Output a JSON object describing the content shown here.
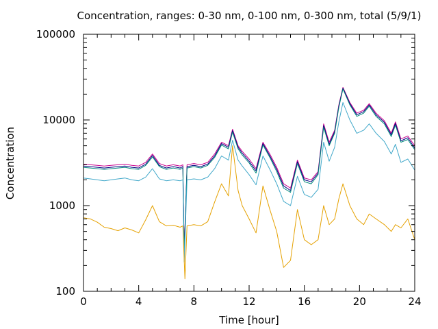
{
  "chart_data": {
    "type": "line",
    "title": "Concentration, ranges: 0-30 nm, 0-100 nm, 0-300 nm, total (5/9/1)",
    "xlabel": "Time [hour]",
    "ylabel": "Concentration",
    "xlim": [
      0,
      24
    ],
    "ylim": [
      100,
      100000
    ],
    "yscale": "log",
    "grid": false,
    "legend": "none",
    "x_ticks": [
      "0",
      "4",
      "8",
      "12",
      "16",
      "20",
      "24"
    ],
    "y_ticks": [
      "100",
      "1000",
      "10000",
      "100000"
    ],
    "series": [
      {
        "color": "#c8008c",
        "points": [
          [
            0,
            3050
          ],
          [
            0.5,
            3000
          ],
          [
            1,
            2950
          ],
          [
            1.5,
            2900
          ],
          [
            2,
            2950
          ],
          [
            2.5,
            3000
          ],
          [
            3,
            3050
          ],
          [
            3.5,
            2950
          ],
          [
            4,
            2900
          ],
          [
            4.5,
            3200
          ],
          [
            5,
            4000
          ],
          [
            5.5,
            3100
          ],
          [
            6,
            2900
          ],
          [
            6.5,
            3000
          ],
          [
            7,
            2900
          ],
          [
            7.2,
            3000
          ],
          [
            7.3,
            300
          ],
          [
            7.5,
            3000
          ],
          [
            8,
            3100
          ],
          [
            8.5,
            3000
          ],
          [
            9,
            3200
          ],
          [
            9.5,
            4000
          ],
          [
            10,
            5500
          ],
          [
            10.5,
            5000
          ],
          [
            10.8,
            7800
          ],
          [
            11.2,
            5000
          ],
          [
            11.5,
            4300
          ],
          [
            12,
            3500
          ],
          [
            12.5,
            2700
          ],
          [
            13,
            5500
          ],
          [
            13.5,
            4000
          ],
          [
            14,
            2800
          ],
          [
            14.5,
            1800
          ],
          [
            15,
            1600
          ],
          [
            15.5,
            3400
          ],
          [
            16,
            2100
          ],
          [
            16.5,
            2000
          ],
          [
            17,
            2500
          ],
          [
            17.4,
            9000
          ],
          [
            17.8,
            5500
          ],
          [
            18.2,
            7600
          ],
          [
            18.5,
            15000
          ],
          [
            18.8,
            24000
          ],
          [
            19.3,
            16000
          ],
          [
            19.8,
            12000
          ],
          [
            20.3,
            13000
          ],
          [
            20.7,
            15500
          ],
          [
            21.2,
            12000
          ],
          [
            21.8,
            9800
          ],
          [
            22.3,
            7000
          ],
          [
            22.6,
            9500
          ],
          [
            23,
            6000
          ],
          [
            23.5,
            6500
          ],
          [
            24,
            5000
          ]
        ]
      },
      {
        "color": "#000080",
        "points": [
          [
            0,
            2900
          ],
          [
            0.5,
            2850
          ],
          [
            1,
            2800
          ],
          [
            1.5,
            2750
          ],
          [
            2,
            2800
          ],
          [
            2.5,
            2850
          ],
          [
            3,
            2900
          ],
          [
            3.5,
            2800
          ],
          [
            4,
            2750
          ],
          [
            4.5,
            3050
          ],
          [
            5,
            3850
          ],
          [
            5.5,
            2950
          ],
          [
            6,
            2750
          ],
          [
            6.5,
            2850
          ],
          [
            7,
            2750
          ],
          [
            7.2,
            2850
          ],
          [
            7.3,
            280
          ],
          [
            7.5,
            2850
          ],
          [
            8,
            2950
          ],
          [
            8.5,
            2850
          ],
          [
            9,
            3050
          ],
          [
            9.5,
            3800
          ],
          [
            10,
            5300
          ],
          [
            10.5,
            4800
          ],
          [
            10.8,
            7500
          ],
          [
            11.2,
            4800
          ],
          [
            11.5,
            4100
          ],
          [
            12,
            3300
          ],
          [
            12.5,
            2550
          ],
          [
            13,
            5300
          ],
          [
            13.5,
            3800
          ],
          [
            14,
            2650
          ],
          [
            14.5,
            1700
          ],
          [
            15,
            1500
          ],
          [
            15.5,
            3250
          ],
          [
            16,
            2000
          ],
          [
            16.5,
            1900
          ],
          [
            17,
            2400
          ],
          [
            17.4,
            8600
          ],
          [
            17.8,
            5200
          ],
          [
            18.2,
            7300
          ],
          [
            18.5,
            14500
          ],
          [
            18.8,
            23500
          ],
          [
            19.3,
            15500
          ],
          [
            19.8,
            11500
          ],
          [
            20.3,
            12500
          ],
          [
            20.7,
            15000
          ],
          [
            21.2,
            11500
          ],
          [
            21.8,
            9400
          ],
          [
            22.3,
            6700
          ],
          [
            22.6,
            9100
          ],
          [
            23,
            5700
          ],
          [
            23.5,
            6200
          ],
          [
            24,
            4700
          ]
        ]
      },
      {
        "color": "#00897b",
        "points": [
          [
            0,
            2800
          ],
          [
            0.5,
            2750
          ],
          [
            1,
            2700
          ],
          [
            1.5,
            2650
          ],
          [
            2,
            2700
          ],
          [
            2.5,
            2750
          ],
          [
            3,
            2800
          ],
          [
            3.5,
            2700
          ],
          [
            4,
            2650
          ],
          [
            4.5,
            2950
          ],
          [
            5,
            3700
          ],
          [
            5.5,
            2850
          ],
          [
            6,
            2650
          ],
          [
            6.5,
            2750
          ],
          [
            7,
            2650
          ],
          [
            7.2,
            2750
          ],
          [
            7.3,
            270
          ],
          [
            7.5,
            2750
          ],
          [
            8,
            2850
          ],
          [
            8.5,
            2750
          ],
          [
            9,
            2950
          ],
          [
            9.5,
            3650
          ],
          [
            10,
            5100
          ],
          [
            10.5,
            4600
          ],
          [
            10.8,
            7200
          ],
          [
            11.2,
            4600
          ],
          [
            11.5,
            3900
          ],
          [
            12,
            3150
          ],
          [
            12.5,
            2400
          ],
          [
            13,
            5100
          ],
          [
            13.5,
            3650
          ],
          [
            14,
            2500
          ],
          [
            14.5,
            1600
          ],
          [
            15,
            1430
          ],
          [
            15.5,
            3100
          ],
          [
            16,
            1900
          ],
          [
            16.5,
            1800
          ],
          [
            17,
            2300
          ],
          [
            17.4,
            8200
          ],
          [
            17.8,
            5000
          ],
          [
            18.2,
            7000
          ],
          [
            18.5,
            14000
          ],
          [
            18.8,
            23000
          ],
          [
            19.3,
            15000
          ],
          [
            19.8,
            11000
          ],
          [
            20.3,
            12000
          ],
          [
            20.7,
            14500
          ],
          [
            21.2,
            11000
          ],
          [
            21.8,
            9000
          ],
          [
            22.3,
            6400
          ],
          [
            22.6,
            8700
          ],
          [
            23,
            5500
          ],
          [
            23.5,
            5900
          ],
          [
            24,
            4500
          ]
        ]
      },
      {
        "color": "#3fa7c9",
        "points": [
          [
            0,
            2100
          ],
          [
            0.5,
            2050
          ],
          [
            1,
            2000
          ],
          [
            1.5,
            1950
          ],
          [
            2,
            2000
          ],
          [
            2.5,
            2050
          ],
          [
            3,
            2100
          ],
          [
            3.5,
            2000
          ],
          [
            4,
            1950
          ],
          [
            4.5,
            2150
          ],
          [
            5,
            2700
          ],
          [
            5.5,
            2050
          ],
          [
            6,
            1950
          ],
          [
            6.5,
            2000
          ],
          [
            7,
            1950
          ],
          [
            7.2,
            2000
          ],
          [
            7.3,
            220
          ],
          [
            7.5,
            2000
          ],
          [
            8,
            2050
          ],
          [
            8.5,
            2000
          ],
          [
            9,
            2150
          ],
          [
            9.5,
            2700
          ],
          [
            10,
            3800
          ],
          [
            10.5,
            3400
          ],
          [
            10.8,
            5800
          ],
          [
            11.2,
            3400
          ],
          [
            11.5,
            2900
          ],
          [
            12,
            2300
          ],
          [
            12.5,
            1750
          ],
          [
            13,
            3800
          ],
          [
            13.5,
            2650
          ],
          [
            14,
            1800
          ],
          [
            14.5,
            1120
          ],
          [
            15,
            1000
          ],
          [
            15.5,
            2200
          ],
          [
            16,
            1350
          ],
          [
            16.5,
            1250
          ],
          [
            17,
            1550
          ],
          [
            17.4,
            5500
          ],
          [
            17.8,
            3300
          ],
          [
            18.2,
            4800
          ],
          [
            18.5,
            9500
          ],
          [
            18.8,
            16000
          ],
          [
            19.3,
            10000
          ],
          [
            19.8,
            7000
          ],
          [
            20.3,
            7600
          ],
          [
            20.7,
            9000
          ],
          [
            21.2,
            7000
          ],
          [
            21.8,
            5600
          ],
          [
            22.3,
            4000
          ],
          [
            22.6,
            5200
          ],
          [
            23,
            3200
          ],
          [
            23.5,
            3500
          ],
          [
            24,
            2600
          ]
        ]
      },
      {
        "color": "#e5a100",
        "points": [
          [
            0,
            720
          ],
          [
            0.5,
            700
          ],
          [
            1,
            640
          ],
          [
            1.5,
            560
          ],
          [
            2,
            540
          ],
          [
            2.5,
            510
          ],
          [
            3,
            550
          ],
          [
            3.5,
            520
          ],
          [
            4,
            480
          ],
          [
            4.5,
            680
          ],
          [
            5,
            1000
          ],
          [
            5.5,
            650
          ],
          [
            6,
            580
          ],
          [
            6.5,
            590
          ],
          [
            7,
            560
          ],
          [
            7.2,
            580
          ],
          [
            7.35,
            140
          ],
          [
            7.5,
            580
          ],
          [
            8,
            600
          ],
          [
            8.5,
            580
          ],
          [
            9,
            650
          ],
          [
            9.5,
            1100
          ],
          [
            10,
            1800
          ],
          [
            10.5,
            1300
          ],
          [
            10.8,
            5000
          ],
          [
            11.2,
            1500
          ],
          [
            11.5,
            1000
          ],
          [
            12,
            700
          ],
          [
            12.5,
            480
          ],
          [
            13,
            1700
          ],
          [
            13.5,
            900
          ],
          [
            14,
            500
          ],
          [
            14.5,
            190
          ],
          [
            15,
            230
          ],
          [
            15.5,
            900
          ],
          [
            16,
            400
          ],
          [
            16.5,
            350
          ],
          [
            17,
            400
          ],
          [
            17.4,
            1000
          ],
          [
            17.8,
            600
          ],
          [
            18.2,
            700
          ],
          [
            18.5,
            1200
          ],
          [
            18.8,
            1800
          ],
          [
            19.3,
            1000
          ],
          [
            19.8,
            700
          ],
          [
            20.3,
            600
          ],
          [
            20.7,
            800
          ],
          [
            21.2,
            700
          ],
          [
            21.8,
            600
          ],
          [
            22.3,
            500
          ],
          [
            22.6,
            600
          ],
          [
            23,
            550
          ],
          [
            23.5,
            700
          ],
          [
            24,
            400
          ]
        ]
      }
    ]
  }
}
